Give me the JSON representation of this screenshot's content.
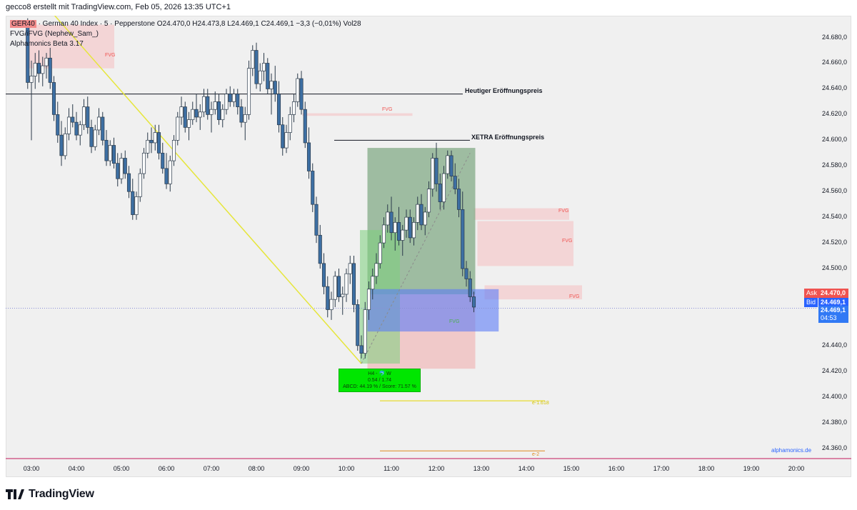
{
  "header": {
    "caption": "gecco8 erstellt mit TradingView.com, Feb 05, 2026 13:35 UTC+1"
  },
  "legend": {
    "symbol": "GER40",
    "instrument": "· German 40 Index · 5 · Pepperstone",
    "ohlc": "O24.470,0  H24.473,8  L24.469,1  C24.469,1  −3,3 (−0,01%)  Vol28",
    "indicator1": "FVG/iFVG (Nephew_Sam_)",
    "indicator2": "Alphamonics Beta 3.17"
  },
  "price_scale": {
    "labels": [
      "24.680,0",
      "24.660,0",
      "24.640,0",
      "24.620,0",
      "24.600,0",
      "24.580,0",
      "24.560,0",
      "24.540,0",
      "24.520,0",
      "24.500,0",
      "24.440,0",
      "24.420,0",
      "24.400,0",
      "24.380,0",
      "24.360,0"
    ]
  },
  "price_tags": {
    "ask_label": "Ask",
    "ask_value": "24.470,0",
    "bid_label": "Bid",
    "bid_value": "24.469,1",
    "last_value": "24.469,1",
    "countdown": "04:53"
  },
  "annotations": {
    "open_today": "Heutiger Eröffnungspreis",
    "open_xetra": "XETRA Eröffnungspreis",
    "fvg": "FVG",
    "fib1": "e-1.618",
    "fib2": "e-2",
    "h4_line1": "H4 - 🐬 W",
    "h4_line2": "0.54 / 1.74",
    "h4_line3": "ABCD: 44.19 % / Score: 71.57 %",
    "brand": "alphamonics.de"
  },
  "footer": {
    "brand": "TradingView"
  },
  "colors": {
    "up": "#ffffff",
    "down": "#3d6fa3",
    "trendline": "#e6e63c",
    "fvg_fill": "#f5c6c8",
    "long_zone": "#4caf7a",
    "short_zone": "#ef9a9a",
    "blue_zone": "#5b7cf7"
  },
  "chart_data": {
    "type": "candlestick",
    "symbol": "GER40",
    "interval": "5",
    "x_ticks": [
      "03:00",
      "04:00",
      "05:00",
      "06:00",
      "07:00",
      "08:00",
      "09:00",
      "10:00",
      "11:00",
      "12:00",
      "13:00",
      "14:00",
      "15:00",
      "16:00",
      "17:00",
      "18:00",
      "19:00",
      "20:00"
    ],
    "ylim": [
      24352,
      24697
    ],
    "levels": [
      {
        "label": "Heutiger Eröffnungspreis",
        "value": 24636
      },
      {
        "label": "XETRA Eröffnungspreis",
        "value": 24600
      },
      {
        "label": "e-1.618",
        "value": 24397
      },
      {
        "label": "e-2",
        "value": 24358
      }
    ],
    "candles": [
      {
        "t": "02:55",
        "o": 24690,
        "h": 24695,
        "l": 24640,
        "c": 24645
      },
      {
        "t": "03:00",
        "o": 24645,
        "h": 24662,
        "l": 24600,
        "c": 24650
      },
      {
        "t": "03:05",
        "o": 24650,
        "h": 24668,
        "l": 24640,
        "c": 24660
      },
      {
        "t": "03:10",
        "o": 24660,
        "h": 24670,
        "l": 24645,
        "c": 24652
      },
      {
        "t": "03:15",
        "o": 24652,
        "h": 24665,
        "l": 24642,
        "c": 24658
      },
      {
        "t": "03:20",
        "o": 24658,
        "h": 24668,
        "l": 24648,
        "c": 24664
      },
      {
        "t": "03:25",
        "o": 24664,
        "h": 24672,
        "l": 24640,
        "c": 24645
      },
      {
        "t": "03:30",
        "o": 24645,
        "h": 24650,
        "l": 24615,
        "c": 24620
      },
      {
        "t": "03:35",
        "o": 24620,
        "h": 24630,
        "l": 24598,
        "c": 24604
      },
      {
        "t": "03:40",
        "o": 24604,
        "h": 24615,
        "l": 24580,
        "c": 24588
      },
      {
        "t": "03:45",
        "o": 24588,
        "h": 24610,
        "l": 24585,
        "c": 24605
      },
      {
        "t": "03:50",
        "o": 24605,
        "h": 24625,
        "l": 24600,
        "c": 24618
      },
      {
        "t": "03:55",
        "o": 24618,
        "h": 24628,
        "l": 24610,
        "c": 24614
      },
      {
        "t": "04:00",
        "o": 24614,
        "h": 24622,
        "l": 24600,
        "c": 24604
      },
      {
        "t": "04:05",
        "o": 24604,
        "h": 24615,
        "l": 24596,
        "c": 24612
      },
      {
        "t": "04:10",
        "o": 24612,
        "h": 24632,
        "l": 24608,
        "c": 24626
      },
      {
        "t": "04:15",
        "o": 24626,
        "h": 24634,
        "l": 24605,
        "c": 24610
      },
      {
        "t": "04:20",
        "o": 24610,
        "h": 24616,
        "l": 24590,
        "c": 24595
      },
      {
        "t": "04:25",
        "o": 24595,
        "h": 24612,
        "l": 24592,
        "c": 24608
      },
      {
        "t": "04:30",
        "o": 24608,
        "h": 24625,
        "l": 24604,
        "c": 24618
      },
      {
        "t": "04:35",
        "o": 24618,
        "h": 24622,
        "l": 24596,
        "c": 24600
      },
      {
        "t": "04:40",
        "o": 24600,
        "h": 24608,
        "l": 24580,
        "c": 24584
      },
      {
        "t": "04:45",
        "o": 24584,
        "h": 24600,
        "l": 24580,
        "c": 24596
      },
      {
        "t": "04:50",
        "o": 24596,
        "h": 24602,
        "l": 24578,
        "c": 24582
      },
      {
        "t": "04:55",
        "o": 24582,
        "h": 24590,
        "l": 24564,
        "c": 24570
      },
      {
        "t": "05:00",
        "o": 24570,
        "h": 24590,
        "l": 24566,
        "c": 24586
      },
      {
        "t": "05:05",
        "o": 24586,
        "h": 24592,
        "l": 24570,
        "c": 24574
      },
      {
        "t": "05:10",
        "o": 24574,
        "h": 24580,
        "l": 24555,
        "c": 24560
      },
      {
        "t": "05:15",
        "o": 24560,
        "h": 24570,
        "l": 24538,
        "c": 24542
      },
      {
        "t": "05:20",
        "o": 24542,
        "h": 24560,
        "l": 24538,
        "c": 24556
      },
      {
        "t": "05:25",
        "o": 24556,
        "h": 24578,
        "l": 24552,
        "c": 24574
      },
      {
        "t": "05:30",
        "o": 24574,
        "h": 24594,
        "l": 24570,
        "c": 24590
      },
      {
        "t": "05:35",
        "o": 24590,
        "h": 24606,
        "l": 24586,
        "c": 24600
      },
      {
        "t": "05:40",
        "o": 24600,
        "h": 24610,
        "l": 24590,
        "c": 24598
      },
      {
        "t": "05:45",
        "o": 24598,
        "h": 24612,
        "l": 24592,
        "c": 24606
      },
      {
        "t": "05:50",
        "o": 24606,
        "h": 24612,
        "l": 24585,
        "c": 24590
      },
      {
        "t": "05:55",
        "o": 24590,
        "h": 24598,
        "l": 24574,
        "c": 24578
      },
      {
        "t": "06:00",
        "o": 24578,
        "h": 24590,
        "l": 24562,
        "c": 24566
      },
      {
        "t": "06:05",
        "o": 24566,
        "h": 24588,
        "l": 24560,
        "c": 24584
      },
      {
        "t": "06:10",
        "o": 24584,
        "h": 24604,
        "l": 24580,
        "c": 24600
      },
      {
        "t": "06:15",
        "o": 24600,
        "h": 24622,
        "l": 24596,
        "c": 24618
      },
      {
        "t": "06:20",
        "o": 24618,
        "h": 24634,
        "l": 24612,
        "c": 24626
      },
      {
        "t": "06:25",
        "o": 24626,
        "h": 24630,
        "l": 24606,
        "c": 24610
      },
      {
        "t": "06:30",
        "o": 24610,
        "h": 24622,
        "l": 24600,
        "c": 24616
      },
      {
        "t": "06:35",
        "o": 24616,
        "h": 24630,
        "l": 24612,
        "c": 24624
      },
      {
        "t": "06:40",
        "o": 24624,
        "h": 24636,
        "l": 24614,
        "c": 24618
      },
      {
        "t": "06:45",
        "o": 24618,
        "h": 24628,
        "l": 24608,
        "c": 24622
      },
      {
        "t": "06:50",
        "o": 24622,
        "h": 24640,
        "l": 24618,
        "c": 24634
      },
      {
        "t": "06:55",
        "o": 24634,
        "h": 24640,
        "l": 24616,
        "c": 24620
      },
      {
        "t": "07:00",
        "o": 24620,
        "h": 24630,
        "l": 24606,
        "c": 24624
      },
      {
        "t": "07:05",
        "o": 24624,
        "h": 24638,
        "l": 24620,
        "c": 24630
      },
      {
        "t": "07:10",
        "o": 24630,
        "h": 24636,
        "l": 24612,
        "c": 24616
      },
      {
        "t": "07:15",
        "o": 24616,
        "h": 24628,
        "l": 24610,
        "c": 24624
      },
      {
        "t": "07:20",
        "o": 24624,
        "h": 24640,
        "l": 24620,
        "c": 24636
      },
      {
        "t": "07:25",
        "o": 24636,
        "h": 24642,
        "l": 24626,
        "c": 24630
      },
      {
        "t": "07:30",
        "o": 24630,
        "h": 24640,
        "l": 24626,
        "c": 24636
      },
      {
        "t": "07:35",
        "o": 24636,
        "h": 24640,
        "l": 24620,
        "c": 24626
      },
      {
        "t": "07:40",
        "o": 24626,
        "h": 24632,
        "l": 24610,
        "c": 24614
      },
      {
        "t": "07:45",
        "o": 24614,
        "h": 24626,
        "l": 24600,
        "c": 24620
      },
      {
        "t": "07:50",
        "o": 24620,
        "h": 24662,
        "l": 24616,
        "c": 24656
      },
      {
        "t": "07:55",
        "o": 24656,
        "h": 24674,
        "l": 24650,
        "c": 24670
      },
      {
        "t": "08:00",
        "o": 24670,
        "h": 24676,
        "l": 24640,
        "c": 24644
      },
      {
        "t": "08:05",
        "o": 24644,
        "h": 24660,
        "l": 24638,
        "c": 24654
      },
      {
        "t": "08:10",
        "o": 24654,
        "h": 24668,
        "l": 24646,
        "c": 24660
      },
      {
        "t": "08:15",
        "o": 24660,
        "h": 24664,
        "l": 24636,
        "c": 24640
      },
      {
        "t": "08:20",
        "o": 24640,
        "h": 24652,
        "l": 24620,
        "c": 24646
      },
      {
        "t": "08:25",
        "o": 24646,
        "h": 24658,
        "l": 24630,
        "c": 24636
      },
      {
        "t": "08:30",
        "o": 24636,
        "h": 24646,
        "l": 24606,
        "c": 24612
      },
      {
        "t": "08:35",
        "o": 24612,
        "h": 24618,
        "l": 24588,
        "c": 24594
      },
      {
        "t": "08:40",
        "o": 24594,
        "h": 24612,
        "l": 24590,
        "c": 24606
      },
      {
        "t": "08:45",
        "o": 24606,
        "h": 24626,
        "l": 24600,
        "c": 24620
      },
      {
        "t": "08:50",
        "o": 24620,
        "h": 24636,
        "l": 24614,
        "c": 24630
      },
      {
        "t": "08:55",
        "o": 24630,
        "h": 24652,
        "l": 24626,
        "c": 24648
      },
      {
        "t": "09:00",
        "o": 24648,
        "h": 24654,
        "l": 24620,
        "c": 24624
      },
      {
        "t": "09:05",
        "o": 24624,
        "h": 24630,
        "l": 24594,
        "c": 24598
      },
      {
        "t": "09:10",
        "o": 24598,
        "h": 24610,
        "l": 24570,
        "c": 24576
      },
      {
        "t": "09:15",
        "o": 24576,
        "h": 24582,
        "l": 24544,
        "c": 24550
      },
      {
        "t": "09:20",
        "o": 24550,
        "h": 24556,
        "l": 24520,
        "c": 24526
      },
      {
        "t": "09:25",
        "o": 24526,
        "h": 24534,
        "l": 24500,
        "c": 24504
      },
      {
        "t": "09:30",
        "o": 24504,
        "h": 24512,
        "l": 24480,
        "c": 24486
      },
      {
        "t": "09:35",
        "o": 24486,
        "h": 24494,
        "l": 24462,
        "c": 24468
      },
      {
        "t": "09:40",
        "o": 24468,
        "h": 24482,
        "l": 24460,
        "c": 24476
      },
      {
        "t": "09:45",
        "o": 24476,
        "h": 24498,
        "l": 24470,
        "c": 24494
      },
      {
        "t": "09:50",
        "o": 24494,
        "h": 24500,
        "l": 24474,
        "c": 24478
      },
      {
        "t": "09:55",
        "o": 24478,
        "h": 24486,
        "l": 24464,
        "c": 24480
      },
      {
        "t": "10:00",
        "o": 24480,
        "h": 24500,
        "l": 24474,
        "c": 24496
      },
      {
        "t": "10:05",
        "o": 24496,
        "h": 24510,
        "l": 24488,
        "c": 24504
      },
      {
        "t": "10:10",
        "o": 24504,
        "h": 24510,
        "l": 24466,
        "c": 24472
      },
      {
        "t": "10:15",
        "o": 24472,
        "h": 24476,
        "l": 24436,
        "c": 24440
      },
      {
        "t": "10:20",
        "o": 24440,
        "h": 24448,
        "l": 24430,
        "c": 24434
      },
      {
        "t": "10:25",
        "o": 24434,
        "h": 24474,
        "l": 24430,
        "c": 24468
      },
      {
        "t": "10:30",
        "o": 24468,
        "h": 24490,
        "l": 24460,
        "c": 24484
      },
      {
        "t": "10:35",
        "o": 24484,
        "h": 24500,
        "l": 24476,
        "c": 24494
      },
      {
        "t": "10:40",
        "o": 24494,
        "h": 24512,
        "l": 24488,
        "c": 24504
      },
      {
        "t": "10:45",
        "o": 24504,
        "h": 24526,
        "l": 24500,
        "c": 24520
      },
      {
        "t": "10:50",
        "o": 24520,
        "h": 24540,
        "l": 24516,
        "c": 24534
      },
      {
        "t": "10:55",
        "o": 24534,
        "h": 24550,
        "l": 24528,
        "c": 24544
      },
      {
        "t": "11:00",
        "o": 24544,
        "h": 24556,
        "l": 24522,
        "c": 24528
      },
      {
        "t": "11:05",
        "o": 24528,
        "h": 24540,
        "l": 24514,
        "c": 24536
      },
      {
        "t": "11:10",
        "o": 24536,
        "h": 24548,
        "l": 24518,
        "c": 24522
      },
      {
        "t": "11:15",
        "o": 24522,
        "h": 24534,
        "l": 24510,
        "c": 24530
      },
      {
        "t": "11:20",
        "o": 24530,
        "h": 24546,
        "l": 24524,
        "c": 24540
      },
      {
        "t": "11:25",
        "o": 24540,
        "h": 24546,
        "l": 24520,
        "c": 24524
      },
      {
        "t": "11:30",
        "o": 24524,
        "h": 24540,
        "l": 24518,
        "c": 24536
      },
      {
        "t": "11:35",
        "o": 24536,
        "h": 24556,
        "l": 24530,
        "c": 24550
      },
      {
        "t": "11:40",
        "o": 24550,
        "h": 24558,
        "l": 24530,
        "c": 24534
      },
      {
        "t": "11:45",
        "o": 24534,
        "h": 24548,
        "l": 24526,
        "c": 24544
      },
      {
        "t": "11:50",
        "o": 24544,
        "h": 24568,
        "l": 24540,
        "c": 24562
      },
      {
        "t": "11:55",
        "o": 24562,
        "h": 24590,
        "l": 24556,
        "c": 24586
      },
      {
        "t": "12:00",
        "o": 24586,
        "h": 24598,
        "l": 24560,
        "c": 24566
      },
      {
        "t": "12:05",
        "o": 24566,
        "h": 24574,
        "l": 24546,
        "c": 24552
      },
      {
        "t": "12:10",
        "o": 24552,
        "h": 24580,
        "l": 24546,
        "c": 24574
      },
      {
        "t": "12:15",
        "o": 24574,
        "h": 24592,
        "l": 24570,
        "c": 24588
      },
      {
        "t": "12:20",
        "o": 24588,
        "h": 24592,
        "l": 24568,
        "c": 24572
      },
      {
        "t": "12:25",
        "o": 24572,
        "h": 24582,
        "l": 24558,
        "c": 24562
      },
      {
        "t": "12:30",
        "o": 24562,
        "h": 24570,
        "l": 24540,
        "c": 24546
      },
      {
        "t": "12:35",
        "o": 24546,
        "h": 24560,
        "l": 24494,
        "c": 24500
      },
      {
        "t": "12:40",
        "o": 24500,
        "h": 24506,
        "l": 24486,
        "c": 24492
      },
      {
        "t": "12:45",
        "o": 24492,
        "h": 24498,
        "l": 24474,
        "c": 24478
      },
      {
        "t": "12:50",
        "o": 24478,
        "h": 24482,
        "l": 24466,
        "c": 24470
      }
    ]
  }
}
